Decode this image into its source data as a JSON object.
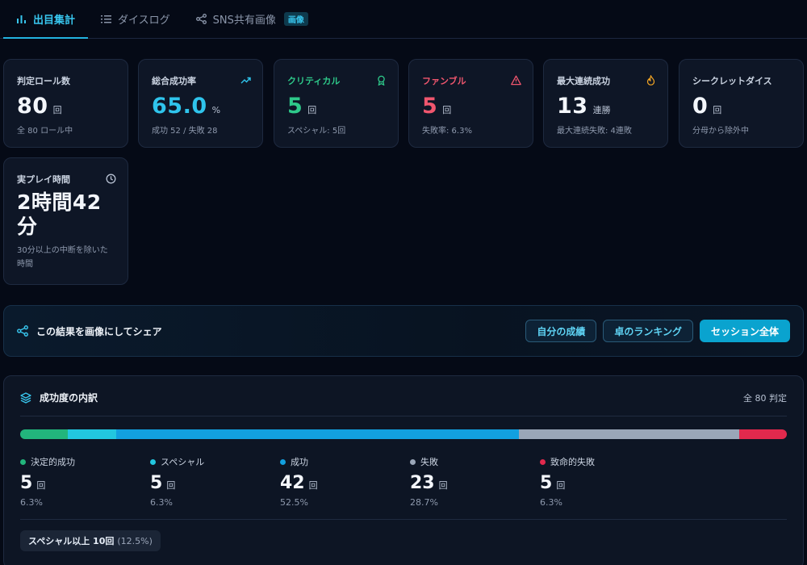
{
  "tabs": [
    {
      "label": "出目集計",
      "icon": "bar-chart-icon",
      "active": true
    },
    {
      "label": "ダイスログ",
      "icon": "list-icon",
      "active": false
    },
    {
      "label": "SNS共有画像",
      "icon": "share-icon",
      "active": false,
      "badge": "画像"
    }
  ],
  "stats": {
    "rolls": {
      "label": "判定ロール数",
      "value": "80",
      "unit": "回",
      "sub": "全 80 ロール中"
    },
    "success_rate": {
      "label": "総合成功率",
      "value": "65.0",
      "unit": "%",
      "sub": "成功 52 / 失敗 28",
      "icon": "trend-up-icon"
    },
    "critical": {
      "label": "クリティカル",
      "value": "5",
      "unit": "回",
      "sub": "スペシャル: 5回",
      "icon": "award-icon"
    },
    "fumble": {
      "label": "ファンブル",
      "value": "5",
      "unit": "回",
      "sub": "失敗率: 6.3%",
      "icon": "warning-icon"
    },
    "streak": {
      "label": "最大連続成功",
      "value": "13",
      "unit": "連勝",
      "sub": "最大連続失敗: 4連敗",
      "icon": "flame-icon"
    },
    "secret": {
      "label": "シークレットダイス",
      "value": "0",
      "unit": "回",
      "sub": "分母から除外中"
    },
    "playtime": {
      "label": "実プレイ時間",
      "value": "2時間42分",
      "sub": "30分以上の中断を除いた時間",
      "icon": "clock-icon"
    }
  },
  "share": {
    "title": "この結果を画像にしてシェア",
    "icon": "share-icon",
    "buttons": [
      "自分の成績",
      "卓のランキング",
      "セッション全体"
    ]
  },
  "breakdown": {
    "title": "成功度の内訳",
    "icon": "layers-icon",
    "total": "全 80 判定",
    "unit": "回",
    "items": [
      {
        "label": "決定的成功",
        "value": "5",
        "pct": "6.3%",
        "fraction": 0.0625,
        "color": "#22b57c"
      },
      {
        "label": "スペシャル",
        "value": "5",
        "pct": "6.3%",
        "fraction": 0.0625,
        "color": "#22c7e0"
      },
      {
        "label": "成功",
        "value": "42",
        "pct": "52.5%",
        "fraction": 0.525,
        "color": "#12a0e0"
      },
      {
        "label": "失敗",
        "value": "23",
        "pct": "28.7%",
        "fraction": 0.2875,
        "color": "#9aa6b8"
      },
      {
        "label": "致命的失敗",
        "value": "5",
        "pct": "6.3%",
        "fraction": 0.0625,
        "color": "#e1294d"
      }
    ],
    "summary": {
      "main": "スペシャル以上 10回",
      "pct": "(12.5%)"
    }
  }
}
